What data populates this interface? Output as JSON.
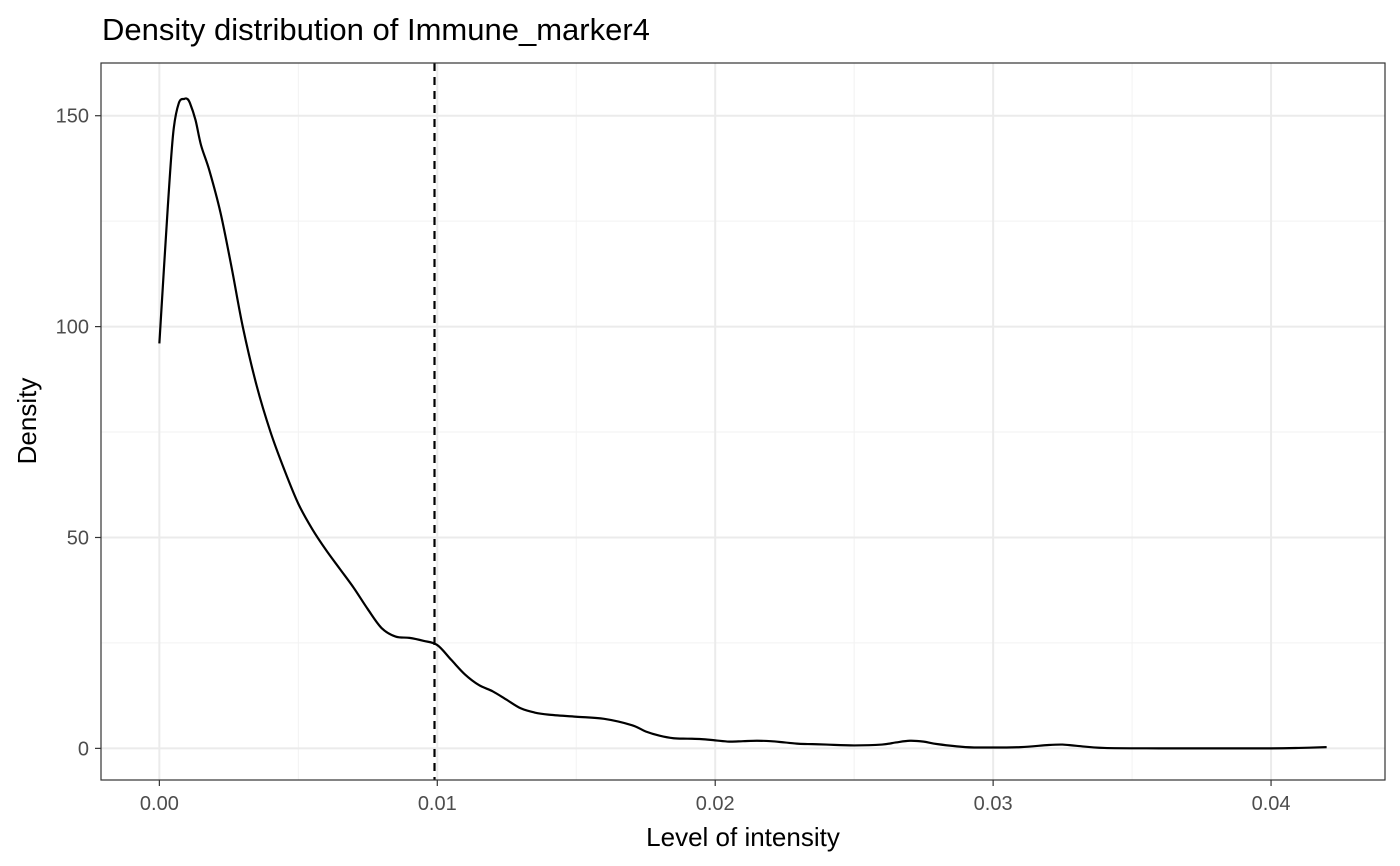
{
  "chart_data": {
    "type": "line",
    "title": "Density distribution of Immune_marker4",
    "xlabel": "Level of intensity",
    "ylabel": "Density",
    "xlim": [
      -0.0021,
      0.0441
    ],
    "ylim": [
      -7.5,
      162.5
    ],
    "x_ticks": [
      0.0,
      0.01,
      0.02,
      0.03,
      0.04
    ],
    "x_tick_labels": [
      "0.00",
      "0.01",
      "0.02",
      "0.03",
      "0.04"
    ],
    "y_ticks": [
      0,
      50,
      100,
      150
    ],
    "y_tick_labels": [
      "0",
      "50",
      "100",
      "150"
    ],
    "grid": true,
    "legend": "none",
    "vline": {
      "x": 0.0099,
      "style": "dashed"
    },
    "series": [
      {
        "x": [
          0.0,
          0.0003,
          0.0005,
          0.0007,
          0.0009,
          0.001,
          0.0011,
          0.0013,
          0.0015,
          0.0018,
          0.0022,
          0.0026,
          0.003,
          0.0035,
          0.004,
          0.0045,
          0.005,
          0.0055,
          0.006,
          0.0065,
          0.007,
          0.0075,
          0.008,
          0.0085,
          0.009,
          0.0095,
          0.01,
          0.0105,
          0.011,
          0.0115,
          0.012,
          0.0125,
          0.013,
          0.0135,
          0.014,
          0.015,
          0.016,
          0.017,
          0.0175,
          0.018,
          0.0185,
          0.019,
          0.0195,
          0.02,
          0.0205,
          0.021,
          0.0215,
          0.022,
          0.0225,
          0.023,
          0.0235,
          0.024,
          0.025,
          0.026,
          0.0265,
          0.027,
          0.0275,
          0.028,
          0.029,
          0.03,
          0.031,
          0.032,
          0.0325,
          0.033,
          0.034,
          0.036,
          0.038,
          0.04,
          0.041,
          0.042
        ],
        "values": [
          96,
          128,
          146,
          153,
          154,
          154,
          153,
          149,
          143,
          137,
          127,
          114,
          100,
          86,
          75,
          66,
          58,
          52,
          47,
          42.5,
          38,
          33,
          28.5,
          26.5,
          26.2,
          25.5,
          24.5,
          21,
          17.5,
          15,
          13.5,
          11.5,
          9.5,
          8.5,
          8,
          7.5,
          7,
          5.5,
          4,
          3,
          2.4,
          2.3,
          2.2,
          1.9,
          1.6,
          1.7,
          1.8,
          1.7,
          1.4,
          1.1,
          1.0,
          0.9,
          0.7,
          0.9,
          1.4,
          1.8,
          1.6,
          1.0,
          0.3,
          0.2,
          0.3,
          0.8,
          0.9,
          0.6,
          0.1,
          0,
          0,
          0,
          0.1,
          0.3
        ]
      }
    ]
  }
}
